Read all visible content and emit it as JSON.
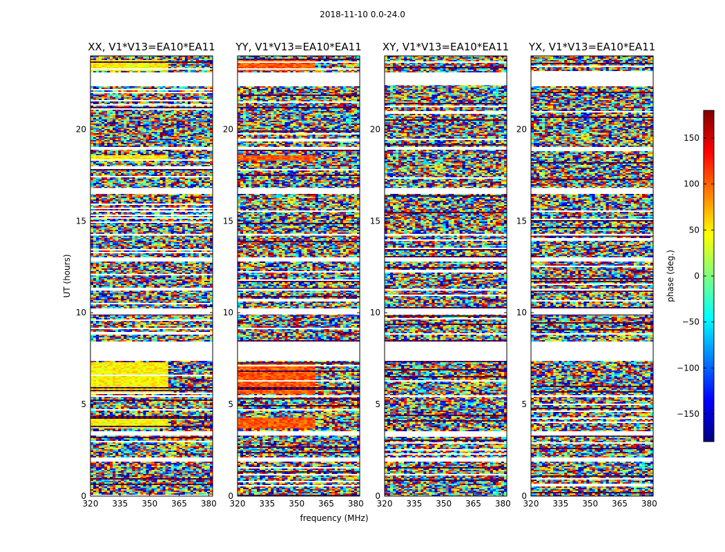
{
  "figure_title": "2018-11-10 0.0-24.0",
  "chart_data": {
    "type": "heatmap",
    "suptitle": "2018-11-10 0.0-24.0",
    "xlabel": "frequency (MHz)",
    "ylabel": "UT (hours)",
    "xlim": [
      320,
      382
    ],
    "ylim": [
      0,
      24
    ],
    "xticks": [
      320,
      335,
      350,
      365,
      380
    ],
    "yticks": [
      0,
      5,
      10,
      15,
      20
    ],
    "panels": [
      {
        "title": "XX, V1*V13=EA10*EA11",
        "bias": "yellow"
      },
      {
        "title": "YY, V1*V13=EA10*EA11",
        "bias": "orange"
      },
      {
        "title": "XY, V1*V13=EA10*EA11",
        "bias": "none"
      },
      {
        "title": "YX, V1*V13=EA10*EA11",
        "bias": "none"
      }
    ],
    "gaps_hours": [
      [
        7.4,
        8.4
      ],
      [
        12.8,
        13.0
      ],
      [
        22.4,
        23.1
      ],
      [
        1.9,
        2.1
      ],
      [
        5.4,
        5.5
      ],
      [
        3.3,
        3.5
      ],
      [
        9.9,
        10.2
      ],
      [
        16.5,
        16.8
      ],
      [
        18.9,
        19.0
      ],
      [
        11.2,
        11.3
      ],
      [
        14.2,
        14.3
      ]
    ],
    "colorbar": {
      "label": "phase (deg.)",
      "range": [
        -180,
        180
      ],
      "ticks": [
        150,
        100,
        50,
        0,
        -50,
        -100,
        -150
      ],
      "ticklabels": [
        "150",
        "100",
        "50",
        "0",
        "−50",
        "−100",
        "−150"
      ],
      "colormap": "jet",
      "colors": [
        "#00007f",
        "#0000ff",
        "#007fff",
        "#00ffff",
        "#7fff7f",
        "#ffff00",
        "#ff7f00",
        "#ff0000",
        "#7f0000"
      ]
    }
  }
}
